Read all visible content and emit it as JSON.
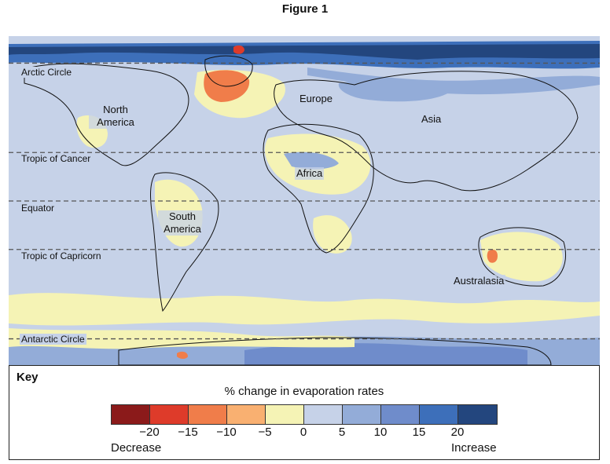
{
  "figure_title": "Figure 1",
  "map": {
    "lines": [
      {
        "label": "Arctic Circle",
        "y": 66.5
      },
      {
        "label": "Tropic of Cancer",
        "y": 23.4
      },
      {
        "label": "Equator",
        "y": 0
      },
      {
        "label": "Tropic of Capricorn",
        "y": -23.4
      },
      {
        "label": "Antarctic Circle",
        "y": -66.5
      }
    ],
    "regions": [
      "North America",
      "Europe",
      "Asia",
      "Africa",
      "South America",
      "Australasia"
    ]
  },
  "key": {
    "title": "Key",
    "caption": "% change in evaporation rates",
    "colors": [
      "#8b1a1a",
      "#de3b2a",
      "#f07d4a",
      "#f9b071",
      "#f5f3b5",
      "#c6d2e8",
      "#93acd8",
      "#6f8ccb",
      "#3d6fba",
      "#23467e"
    ],
    "ticks": [
      "−20",
      "−15",
      "−10",
      "−5",
      "0",
      "5",
      "10",
      "15",
      "20"
    ],
    "decrease_label": "Decrease",
    "increase_label": "Increase"
  },
  "palette": {
    "ocean_base": "#c6d2e8",
    "land_outline": "#111111",
    "dashed_line": "#555555"
  }
}
